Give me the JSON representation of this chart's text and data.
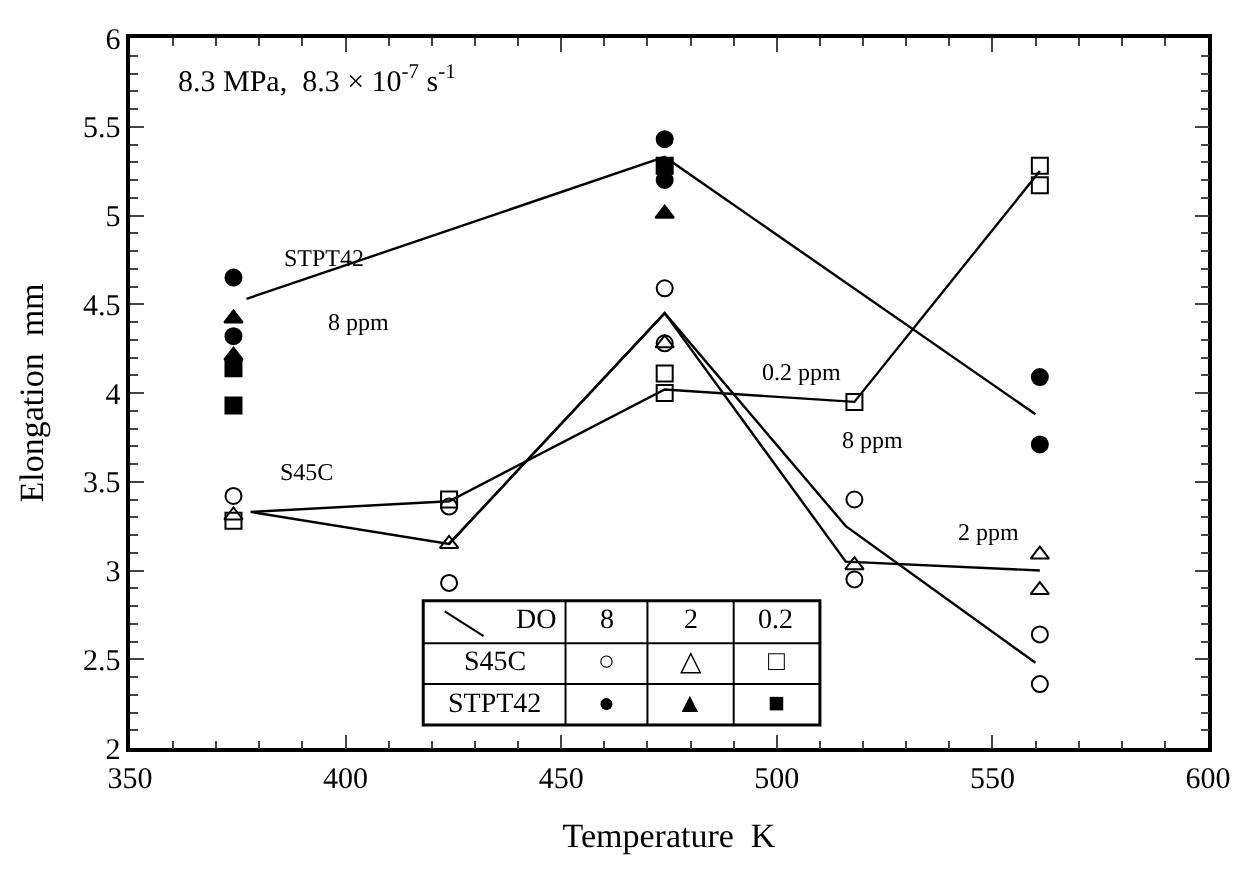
{
  "chart_data": {
    "type": "scatter",
    "xlabel": "Temperature  K",
    "ylabel": "Elongation  mm",
    "xlim": [
      350,
      600
    ],
    "xticks": [
      350,
      400,
      450,
      500,
      550,
      600
    ],
    "ylim": [
      2,
      6
    ],
    "yticks": [
      2,
      2.5,
      3,
      3.5,
      4,
      4.5,
      5,
      5.5,
      6
    ],
    "grid": false,
    "series": [
      {
        "marker": "circle-open",
        "color": "#000000",
        "x": [
          374,
          424,
          424,
          474,
          474,
          518,
          518,
          561,
          561
        ],
        "values": [
          3.42,
          3.36,
          2.93,
          4.59,
          4.28,
          3.4,
          2.95,
          2.64,
          2.36
        ]
      },
      {
        "marker": "triangle-open",
        "color": "#000000",
        "x": [
          374,
          424,
          474,
          518,
          561,
          561
        ],
        "values": [
          3.31,
          3.15,
          4.28,
          3.03,
          3.09,
          2.89
        ]
      },
      {
        "marker": "square-open",
        "color": "#000000",
        "x": [
          374,
          424,
          474,
          474,
          518,
          561,
          561
        ],
        "values": [
          3.28,
          3.4,
          4.11,
          4.0,
          3.95,
          5.28,
          5.17
        ]
      },
      {
        "marker": "circle",
        "color": "#000000",
        "x": [
          374,
          374,
          474,
          474,
          561,
          561
        ],
        "values": [
          4.65,
          4.32,
          5.43,
          5.2,
          4.09,
          3.71
        ]
      },
      {
        "marker": "triangle",
        "color": "#000000",
        "x": [
          374,
          374,
          474
        ],
        "values": [
          4.42,
          4.21,
          5.01
        ]
      },
      {
        "marker": "square",
        "color": "#000000",
        "x": [
          374,
          374,
          474
        ],
        "values": [
          4.14,
          3.93,
          5.28
        ]
      },
      {
        "type": "line",
        "marker": "none",
        "color": "#000000",
        "x": [
          377,
          474,
          560
        ],
        "values": [
          4.53,
          5.33,
          3.88
        ]
      },
      {
        "type": "line",
        "marker": "none",
        "color": "#000000",
        "x": [
          378,
          424,
          474,
          518,
          561
        ],
        "values": [
          3.33,
          3.39,
          4.02,
          3.95,
          5.25
        ]
      },
      {
        "type": "line",
        "marker": "none",
        "color": "#000000",
        "x": [
          378,
          424,
          474,
          516,
          561
        ],
        "values": [
          3.33,
          3.15,
          4.45,
          3.05,
          3.0
        ]
      },
      {
        "type": "line",
        "marker": "none",
        "color": "#000000",
        "x": [
          424,
          474,
          516,
          560
        ],
        "values": [
          3.15,
          4.45,
          3.25,
          2.48
        ]
      }
    ],
    "annotations": [
      "8.3 MPa,  8.3 × 10$^{-7}$ s$^{-1}$",
      "STPT42",
      "8 ppm",
      "S45C",
      "0.2 ppm",
      "8 ppm",
      "2 ppm",
      "DO",
      "8",
      "2",
      "0.2",
      "S45C",
      "○",
      "△",
      "□",
      "STPT42",
      "●",
      "▲",
      "■"
    ]
  }
}
